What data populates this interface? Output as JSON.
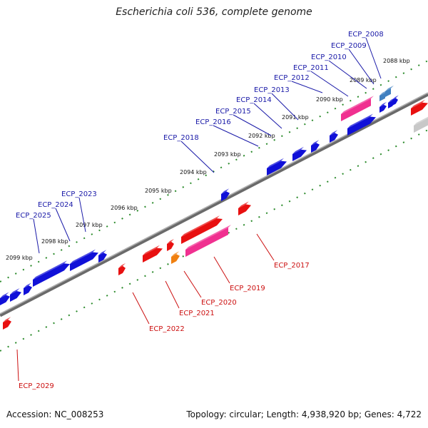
{
  "title": "Escherichia coli 536, complete genome",
  "accession": "Accession: NC_008253",
  "topology": "Topology: circular; Length: 4,938,920 bp; Genes: 4,722",
  "colors": {
    "backbone": "#8c8c8c",
    "ruler": "#2a8a2a",
    "top_label": "#1a1aa8",
    "bottom_label": "#cc1010",
    "gene_blue": "#1010d8",
    "gene_red": "#e81010",
    "gene_pink": "#f03090",
    "gene_orange": "#f08010",
    "gene_grey": "#c8c8c8",
    "gene_lightblue": "#4080c0"
  },
  "ticks": [
    "2088 kbp",
    "2089 kbp",
    "2090 kbp",
    "2091 kbp",
    "2092 kbp",
    "2093 kbp",
    "2094 kbp",
    "2095 kbp",
    "2096 kbp",
    "2097 kbp",
    "2098 kbp",
    "2099 kbp"
  ],
  "top_labels": [
    "ECP_2008",
    "ECP_2009",
    "ECP_2010",
    "ECP_2011",
    "ECP_2012",
    "ECP_2013",
    "ECP_2014",
    "ECP_2015",
    "ECP_2016",
    "ECP_2018",
    "ECP_2023",
    "ECP_2024",
    "ECP_2025"
  ],
  "bottom_labels": [
    "ECP_2017",
    "ECP_2019",
    "ECP_2020",
    "ECP_2021",
    "ECP_2022",
    "ECP_2029"
  ]
}
